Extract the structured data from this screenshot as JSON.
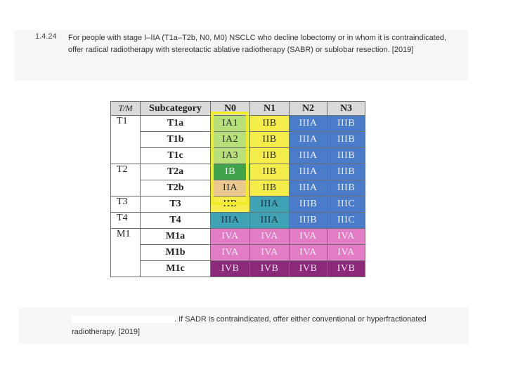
{
  "recommendation": {
    "number": "1.4.24",
    "text": "For people with stage I–IIA (T1a–T2b, N0, M0) NSCLC who decline lobectomy or in whom it is contraindicated, offer radical radiotherapy with stereotactic ablative radiotherapy (SABR) or sublobar resection. [2019]"
  },
  "table": {
    "headers": [
      "T/M",
      "Subcategory",
      "N0",
      "N1",
      "N2",
      "N3"
    ],
    "rows": [
      {
        "tm": "T1",
        "sub": "T1a",
        "stages": [
          "IA1",
          "IIB",
          "IIIA",
          "IIIB"
        ]
      },
      {
        "tm": "",
        "sub": "T1b",
        "stages": [
          "IA2",
          "IIB",
          "IIIA",
          "IIIB"
        ]
      },
      {
        "tm": "",
        "sub": "T1c",
        "stages": [
          "IA3",
          "IIB",
          "IIIA",
          "IIIB"
        ]
      },
      {
        "tm": "T2",
        "sub": "T2a",
        "stages": [
          "IB",
          "IIB",
          "IIIA",
          "IIIB"
        ]
      },
      {
        "tm": "",
        "sub": "T2b",
        "stages": [
          "IIA",
          "IIB",
          "IIIA",
          "IIIB"
        ]
      },
      {
        "tm": "T3",
        "sub": "T3",
        "stages": [
          "IIB",
          "IIIA",
          "IIIB",
          "IIIC"
        ]
      },
      {
        "tm": "T4",
        "sub": "T4",
        "stages": [
          "IIIA",
          "IIIA",
          "IIIB",
          "IIIC"
        ]
      },
      {
        "tm": "M1",
        "sub": "M1a",
        "stages": [
          "IVA",
          "IVA",
          "IVA",
          "IVA"
        ]
      },
      {
        "tm": "",
        "sub": "M1b",
        "stages": [
          "IVA",
          "IVA",
          "IVA",
          "IVA"
        ]
      },
      {
        "tm": "",
        "sub": "M1c",
        "stages": [
          "IVB",
          "IVB",
          "IVB",
          "IVB"
        ]
      }
    ],
    "colors": {
      "yellowgreen": "#b8e07a",
      "yellow": "#f5ee4a",
      "green": "#3ea34a",
      "tan": "#ebc88f",
      "blue": "#4a7cc9",
      "teal": "#3fa3b5",
      "pink": "#e27dc5",
      "purple": "#8a2a78",
      "highlight": "#f2ec28"
    }
  },
  "bottom": {
    "text": ". If SADR is contraindicated, offer either conventional or hyperfractionated radiotherapy. [2019]"
  }
}
